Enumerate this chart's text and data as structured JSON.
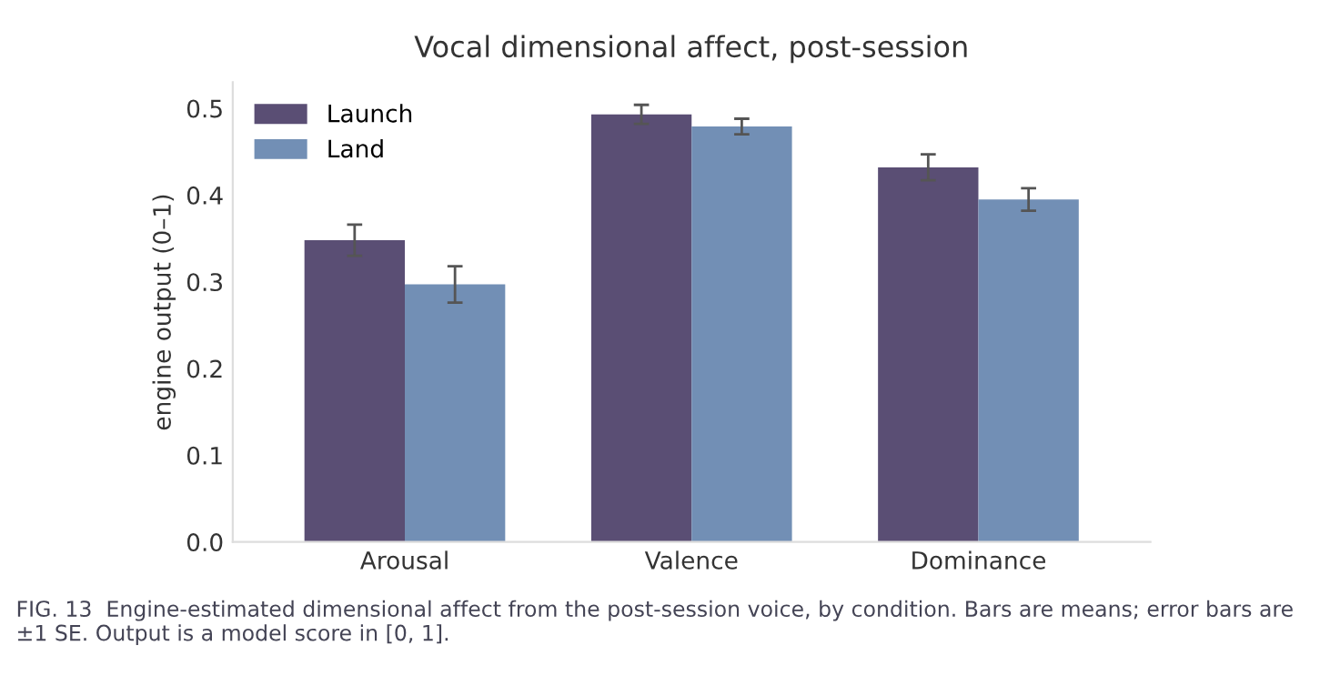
{
  "chart_data": {
    "type": "bar",
    "title": "Vocal dimensional affect, post-session",
    "ylabel": "engine output (0–1)",
    "categories": [
      "Arousal",
      "Valence",
      "Dominance"
    ],
    "series": [
      {
        "name": "Launch",
        "color": "#5a4e74",
        "values": [
          0.348,
          0.493,
          0.432
        ],
        "errors": [
          0.018,
          0.011,
          0.015
        ]
      },
      {
        "name": "Land",
        "color": "#728fb5",
        "values": [
          0.297,
          0.479,
          0.395
        ],
        "errors": [
          0.021,
          0.009,
          0.013
        ]
      }
    ],
    "ylim": [
      0,
      0.53
    ],
    "yticks": [
      {
        "value": 0,
        "label": "0.0"
      },
      0.1,
      0.2,
      0.3,
      0.4,
      0.5
    ],
    "grid": false,
    "legend": "top left",
    "annotations": [
      "FIG. 13  Engine-estimated dimensional affect from the post-session voice, by condition. Bars are means; error bars are ±1 SE. Output is a model score in [0, 1]."
    ]
  }
}
